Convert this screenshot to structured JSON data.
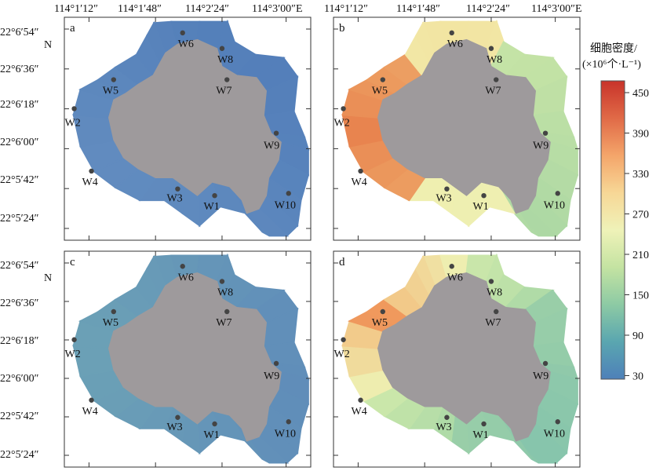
{
  "figure": {
    "lon_labels": [
      "114°1′12″",
      "114°1′48″",
      "114°2′24″",
      "114°3′00″E"
    ],
    "lat_labels": [
      "22°6′54″",
      "22°6′36″",
      "22°6′18″",
      "22°6′00″",
      "22°5′42″",
      "22°5′24″"
    ],
    "lat_suffix": "N"
  },
  "colorbar": {
    "title_line1": "细胞密度/",
    "title_line2": "(×10⁶个·L⁻¹)",
    "ticks": [
      "450",
      "390",
      "330",
      "270",
      "210",
      "150",
      "90",
      "30"
    ],
    "gradient_colors": [
      "#c8332a",
      "#e06a47",
      "#f4a56a",
      "#f7d796",
      "#eff2b8",
      "#c4e3a2",
      "#8dcaa4",
      "#5aa6b0",
      "#4e80b9"
    ]
  },
  "panels": [
    {
      "letter": "a",
      "scheme": "uniform-blue"
    },
    {
      "letter": "b",
      "scheme": "high-west"
    },
    {
      "letter": "c",
      "scheme": "uniform-teal"
    },
    {
      "letter": "d",
      "scheme": "high-northwest"
    }
  ],
  "stations": [
    "W1",
    "W2",
    "W3",
    "W4",
    "W5",
    "W6",
    "W7",
    "W8",
    "W9",
    "W10"
  ],
  "land_color": "#9e9a9c"
}
